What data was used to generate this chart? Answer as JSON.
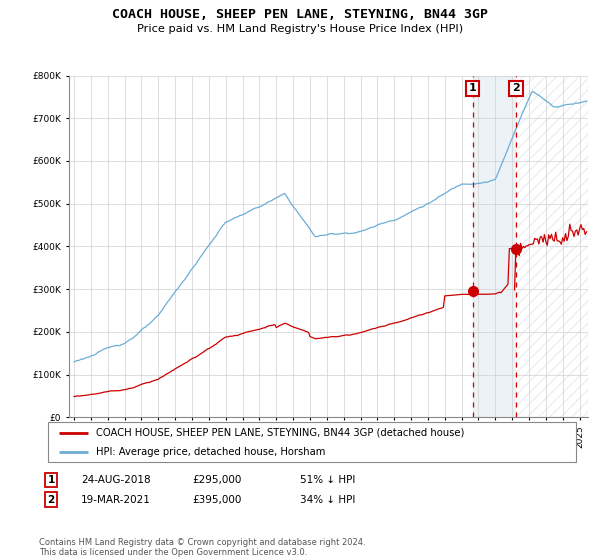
{
  "title": "COACH HOUSE, SHEEP PEN LANE, STEYNING, BN44 3GP",
  "subtitle": "Price paid vs. HM Land Registry's House Price Index (HPI)",
  "legend_line1": "COACH HOUSE, SHEEP PEN LANE, STEYNING, BN44 3GP (detached house)",
  "legend_line2": "HPI: Average price, detached house, Horsham",
  "annotation1_date": "24-AUG-2018",
  "annotation1_price": "£295,000",
  "annotation1_hpi": "51% ↓ HPI",
  "annotation2_date": "19-MAR-2021",
  "annotation2_price": "£395,000",
  "annotation2_hpi": "34% ↓ HPI",
  "footnote": "Contains HM Land Registry data © Crown copyright and database right 2024.\nThis data is licensed under the Open Government Licence v3.0.",
  "hpi_color": "#6baed6",
  "price_color": "#cc0000",
  "box_color": "#cc0000",
  "shading_color": "#dce6f1",
  "hatch_color": "#cccccc",
  "ylim_max": 800000,
  "sale1_year": 2018.65,
  "sale1_price": 295000,
  "sale2_year": 2021.22,
  "sale2_price": 395000,
  "xmin": 1994.7,
  "xmax": 2025.5
}
